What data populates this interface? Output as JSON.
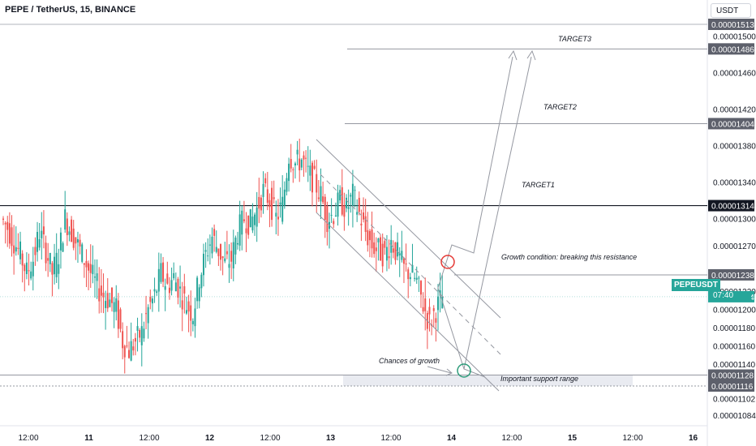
{
  "header": {
    "symbol_title": "PEPE / TetherUS, 15, BINANCE",
    "currency_label": "USDT"
  },
  "price_axis": {
    "ticks": [
      "0.00001500",
      "0.00001460",
      "0.00001420",
      "0.00001380",
      "0.00001340",
      "0.00001300",
      "0.00001270",
      "0.00001220",
      "0.00001200",
      "0.00001180",
      "0.00001160",
      "0.00001140",
      "0.00001102",
      "0.00001084"
    ],
    "tick_values": [
      1.5e-05,
      1.46e-05,
      1.42e-05,
      1.38e-05,
      1.34e-05,
      1.3e-05,
      1.27e-05,
      1.22e-05,
      1.2e-05,
      1.18e-05,
      1.16e-05,
      1.14e-05,
      1.102e-05,
      1.084e-05
    ],
    "badges": [
      {
        "label": "0.00001513",
        "value": 1.513e-05,
        "style": "gray"
      },
      {
        "label": "0.00001486",
        "value": 1.486e-05,
        "style": "gray"
      },
      {
        "label": "0.00001404",
        "value": 1.404e-05,
        "style": "gray"
      },
      {
        "label": "0.00001314",
        "value": 1.314e-05,
        "style": "black"
      },
      {
        "label": "0.00001238",
        "value": 1.238e-05,
        "style": "gray"
      },
      {
        "label": "0.00001214",
        "value": 1.214e-05,
        "style": "green"
      },
      {
        "label": "0.00001128",
        "value": 1.128e-05,
        "style": "gray"
      },
      {
        "label": "0.00001116",
        "value": 1.116e-05,
        "style": "gray"
      }
    ],
    "ticker_label": "PEPEUSDT",
    "countdown": "07:40"
  },
  "time_axis": {
    "labels": [
      "12:00",
      "11",
      "12:00",
      "12",
      "12:00",
      "13",
      "12:00",
      "14",
      "12:00",
      "15",
      "12:00",
      "16"
    ],
    "bold": [
      false,
      true,
      false,
      true,
      false,
      true,
      false,
      true,
      false,
      true,
      false,
      true
    ]
  },
  "annotations": {
    "target3": "TARGET3",
    "target2": "TARGET2",
    "target1": "TARGET1",
    "growth_condition": "Growth condition: breaking this resistance",
    "chances": "Chances of growth",
    "support": "Important support range"
  },
  "colors": {
    "up": "#26a69a",
    "down": "#ef5350",
    "accent_green": "#26a69a",
    "circle_red": "#e53935",
    "circle_green": "#2e9c7a",
    "line_gray": "#9598a1",
    "black_line": "#131722"
  },
  "chart_data": {
    "type": "candlestick",
    "title": "PEPE / TetherUS, 15, BINANCE",
    "ylim": [
      1.07e-05,
      1.525e-05
    ],
    "x_categories": [
      "12:00",
      "11",
      "12:00",
      "12",
      "12:00",
      "13",
      "12:00",
      "14",
      "12:00",
      "15",
      "12:00",
      "16"
    ],
    "closes_path": [
      1.29e-05,
      1.275e-05,
      1.26e-05,
      1.24e-05,
      1.255e-05,
      1.285e-05,
      1.265e-05,
      1.24e-05,
      1.26e-05,
      1.3e-05,
      1.285e-05,
      1.27e-05,
      1.255e-05,
      1.24e-05,
      1.225e-05,
      1.215e-05,
      1.21e-05,
      1.2e-05,
      1.165e-05,
      1.155e-05,
      1.165e-05,
      1.175e-05,
      1.2e-05,
      1.215e-05,
      1.24e-05,
      1.225e-05,
      1.235e-05,
      1.22e-05,
      1.205e-05,
      1.195e-05,
      1.235e-05,
      1.26e-05,
      1.28e-05,
      1.265e-05,
      1.25e-05,
      1.255e-05,
      1.285e-05,
      1.3e-05,
      1.295e-05,
      1.31e-05,
      1.33e-05,
      1.32e-05,
      1.3e-05,
      1.315e-05,
      1.37e-05,
      1.36e-05,
      1.365e-05,
      1.35e-05,
      1.34e-05,
      1.325e-05,
      1.3e-05,
      1.305e-05,
      1.32e-05,
      1.31e-05,
      1.325e-05,
      1.305e-05,
      1.285e-05,
      1.27e-05,
      1.265e-05,
      1.26e-05,
      1.275e-05,
      1.26e-05,
      1.245e-05,
      1.24e-05,
      1.23e-05,
      1.205e-05,
      1.185e-05,
      1.2e-05,
      1.214e-05
    ],
    "levels": [
      {
        "label": "TARGET3",
        "value": 1.486e-05
      },
      {
        "label": "TARGET2",
        "value": 1.404e-05
      },
      {
        "label": "TARGET1",
        "value": 1.314e-05
      },
      {
        "label": "Growth condition: breaking this resistance",
        "value": 1.238e-05
      },
      {
        "label": "Important support range",
        "value_top": 1.128e-05,
        "value_bottom": 1.116e-05
      }
    ],
    "current_price": 1.214e-05,
    "grid": false
  }
}
